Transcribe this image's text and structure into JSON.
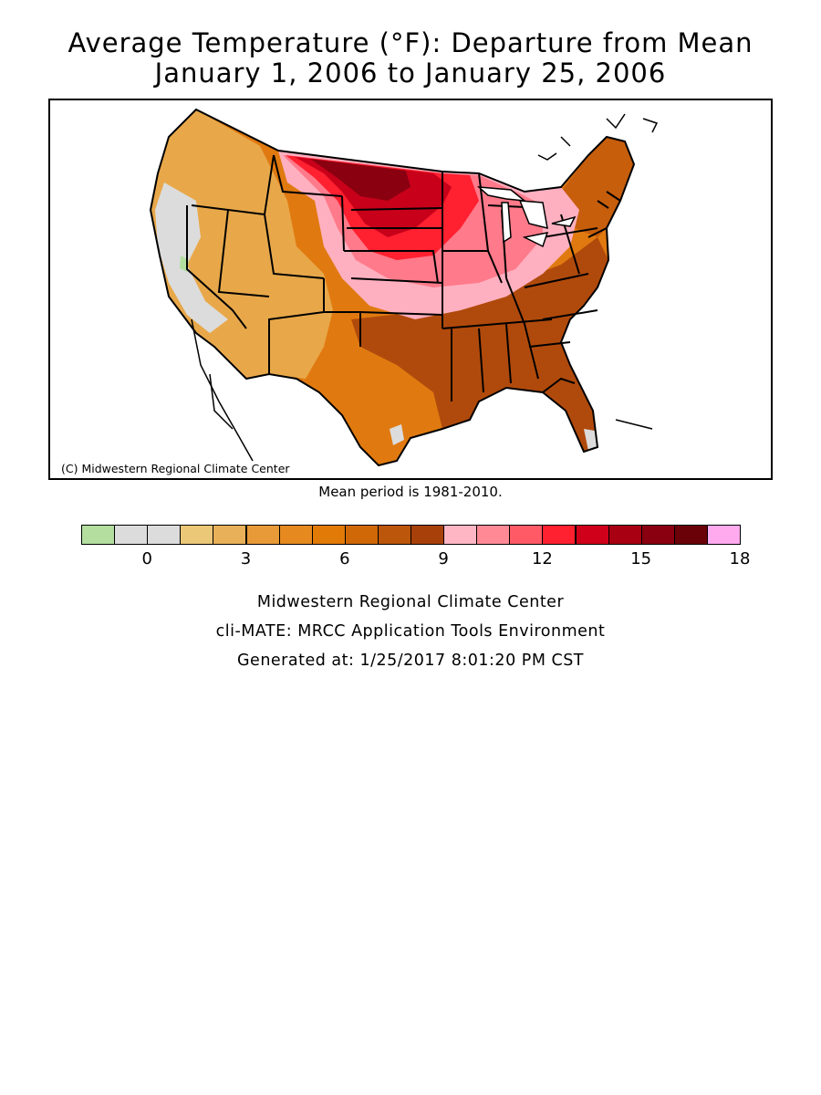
{
  "title": {
    "line1": "Average Temperature (°F): Departure from Mean",
    "line2": "January 1, 2006 to January 25, 2006"
  },
  "map": {
    "copyright": "(C) Midwestern Regional Climate Center",
    "mean_note": "Mean period is 1981-2010.",
    "region_colors": {
      "green": "#b3dea0",
      "gray": "#dcdcdc",
      "tan": "#e8a84a",
      "orange": "#e07a10",
      "dark_orange": "#c65e0c",
      "burnt": "#a8400a",
      "pink": "#ffb0c0",
      "rose": "#ff7a8a",
      "red": "#ff2030",
      "crimson": "#c8001a",
      "maroon": "#8a0010"
    }
  },
  "legend": {
    "colors": [
      "#b3dea0",
      "#dcdcdc",
      "#dcdcdc",
      "#ebc878",
      "#e8b058",
      "#e89a38",
      "#e68a20",
      "#e27a08",
      "#d06808",
      "#bc560a",
      "#a8400a",
      "#ffb6c4",
      "#ff8a96",
      "#ff5a66",
      "#ff2030",
      "#d0001a",
      "#a80012",
      "#8a0010",
      "#6a0008",
      "#ffaaee"
    ],
    "ticks": [
      "0",
      "3",
      "6",
      "9",
      "12",
      "15",
      "18"
    ]
  },
  "footer": {
    "line1": "Midwestern Regional Climate Center",
    "line2": "cli-MATE: MRCC Application Tools Environment",
    "line3": "Generated at: 1/25/2017 8:01:20 PM CST"
  }
}
